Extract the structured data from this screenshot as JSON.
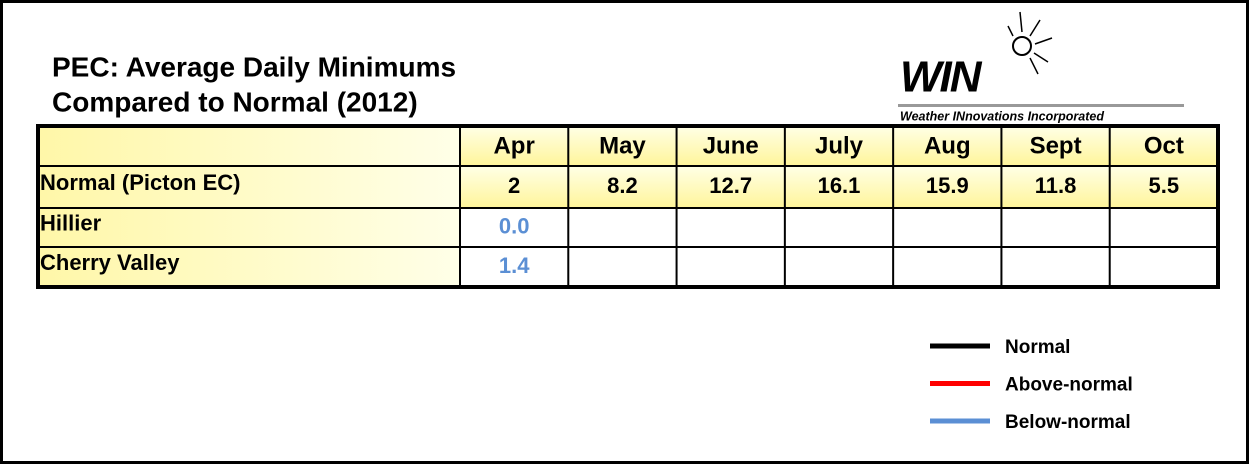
{
  "title": [
    "PEC: Average Daily Minimums",
    "Compared to Normal (2012)"
  ],
  "logo": {
    "mark": "WIN",
    "tagline": "Weather INnovations Incorporated"
  },
  "table": {
    "columns": [
      "Apr",
      "May",
      "June",
      "July",
      "Aug",
      "Sept",
      "Oct"
    ],
    "rows": [
      {
        "label": "Normal (Picton EC)",
        "values": [
          "2",
          "8.2",
          "12.7",
          "16.1",
          "15.9",
          "11.8",
          "5.5"
        ]
      },
      {
        "label": "Hillier",
        "values": [
          "0.0"
        ],
        "value_color": "#5b8fd4"
      },
      {
        "label": "Cherry Valley",
        "values": [
          "1.4"
        ],
        "value_color": "#5b8fd4"
      }
    ]
  },
  "legend": [
    {
      "name": "Normal",
      "color": "#000000"
    },
    {
      "name": "Above-normal",
      "color": "#ff0000"
    },
    {
      "name": "Below-normal",
      "color": "#5b8fd4"
    }
  ]
}
